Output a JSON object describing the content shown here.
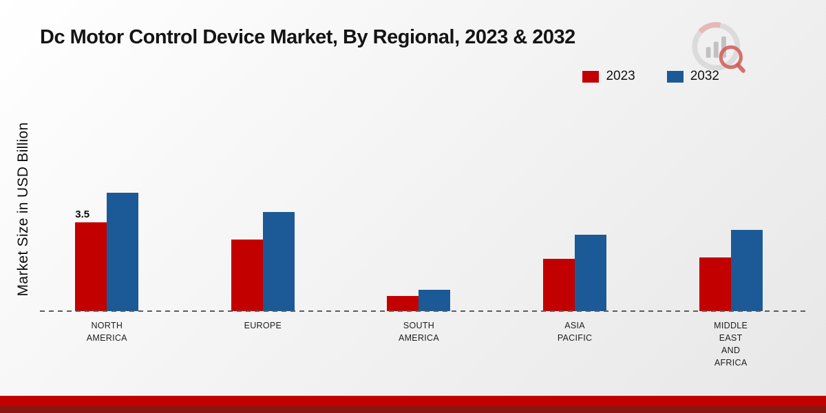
{
  "title": "Dc Motor Control Device Market, By Regional, 2023 & 2032",
  "y_axis_label": "Market Size in USD Billion",
  "legend": [
    {
      "label": "2023",
      "color": "#c30000"
    },
    {
      "label": "2032",
      "color": "#1b5a96"
    }
  ],
  "colors": {
    "accent_red": "#c30000",
    "accent_blue": "#1b5a96",
    "footer_dark_red": "#871710"
  },
  "chart_data": {
    "type": "bar",
    "title": "Dc Motor Control Device Market, By Regional, 2023 & 2032",
    "ylabel": "Market Size in USD Billion",
    "xlabel": "",
    "ylim": [
      0,
      5
    ],
    "grid": false,
    "legend_position": "top-right",
    "axis_line_style": "dashed",
    "categories": [
      "NORTH AMERICA",
      "EUROPE",
      "SOUTH AMERICA",
      "ASIA PACIFIC",
      "MIDDLE EAST AND AFRICA"
    ],
    "categories_lines": [
      [
        "NORTH",
        "AMERICA"
      ],
      [
        "EUROPE"
      ],
      [
        "SOUTH",
        "AMERICA"
      ],
      [
        "ASIA",
        "PACIFIC"
      ],
      [
        "MIDDLE",
        "EAST",
        "AND",
        "AFRICA"
      ]
    ],
    "series": [
      {
        "name": "2023",
        "color": "#c30000",
        "values": [
          3.5,
          2.8,
          0.6,
          2.05,
          2.1
        ],
        "labels": [
          "3.5",
          null,
          null,
          null,
          null
        ]
      },
      {
        "name": "2032",
        "color": "#1b5a96",
        "values": [
          4.65,
          3.9,
          0.85,
          3.0,
          3.2
        ],
        "labels": [
          null,
          null,
          null,
          null,
          null
        ]
      }
    ]
  }
}
